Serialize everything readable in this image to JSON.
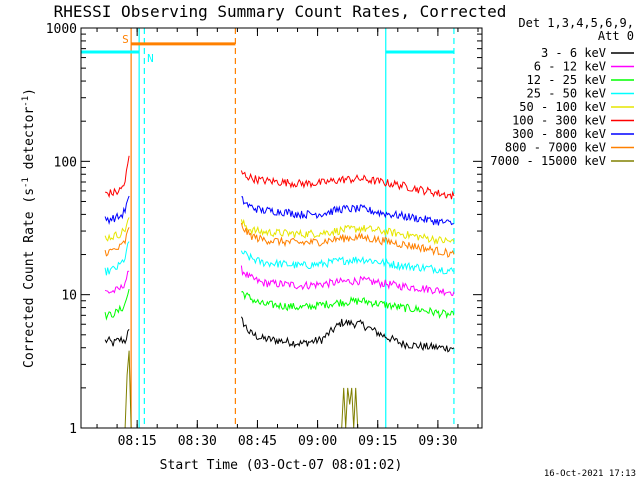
{
  "chart_data": {
    "type": "line",
    "title": "RHESSI Observing Summary Count Rates, Corrected",
    "xlabel": "Start Time (03-Oct-07 08:01:02)",
    "ylabel_main": "Corrected Count Rate (s",
    "ylabel_sup1": "-1",
    "ylabel_mid": " detector",
    "ylabel_sup2": "-1",
    "ylabel_end": ")",
    "y_scale": "log",
    "ylim": [
      1,
      1000
    ],
    "xlim_minutes": [
      0,
      100
    ],
    "x_ticks": [
      {
        "min": 14,
        "label": "08:15"
      },
      {
        "min": 29,
        "label": "08:30"
      },
      {
        "min": 44,
        "label": "08:45"
      },
      {
        "min": 59,
        "label": "09:00"
      },
      {
        "min": 74,
        "label": "09:15"
      },
      {
        "min": 89,
        "label": "09:30"
      }
    ],
    "y_ticks": [
      {
        "value": 1,
        "label": "1"
      },
      {
        "value": 10,
        "label": "10"
      },
      {
        "value": 100,
        "label": "100"
      },
      {
        "value": 1000,
        "label": "1000"
      }
    ],
    "legend": {
      "header1": "Det 1,3,4,5,6,9,",
      "header2": "Att 0",
      "placement": "right"
    },
    "series": [
      {
        "name": "3 - 6 keV",
        "color": "#000000",
        "segments": [
          {
            "x": [
              6,
              7,
              8,
              9,
              10,
              11,
              12
            ],
            "y": [
              4.5,
              4.5,
              4.3,
              4.5,
              4.6,
              4.5,
              5.5
            ]
          },
          {
            "x": [
              40,
              42,
              45,
              50,
              55,
              60,
              65,
              70,
              75,
              80,
              85,
              90,
              93
            ],
            "y": [
              6.5,
              5.2,
              4.7,
              4.5,
              4.3,
              4.6,
              6.2,
              6.0,
              5.0,
              4.3,
              4.1,
              4.0,
              4.0
            ]
          }
        ]
      },
      {
        "name": "6 - 12 keV",
        "color": "#ff00ff",
        "segments": [
          {
            "x": [
              6,
              7,
              8,
              9,
              10,
              11,
              12
            ],
            "y": [
              10.5,
              10.5,
              10.6,
              10.8,
              11.2,
              12.5,
              15
            ]
          },
          {
            "x": [
              40,
              42,
              45,
              50,
              55,
              60,
              65,
              70,
              75,
              80,
              85,
              90,
              93
            ],
            "y": [
              15.5,
              13.5,
              12.3,
              12.0,
              11.7,
              12.0,
              12.5,
              12.8,
              12.2,
              11.6,
              11.2,
              10.7,
              10.5
            ]
          }
        ]
      },
      {
        "name": "12 - 25 keV",
        "color": "#00ff00",
        "segments": [
          {
            "x": [
              6,
              7,
              8,
              9,
              10,
              11,
              12
            ],
            "y": [
              7.0,
              7.0,
              7.2,
              7.4,
              7.8,
              8.5,
              11
            ]
          },
          {
            "x": [
              40,
              42,
              45,
              50,
              55,
              60,
              65,
              70,
              75,
              80,
              85,
              90,
              93
            ],
            "y": [
              10.5,
              9.5,
              8.5,
              8.3,
              8.0,
              8.4,
              8.8,
              9.0,
              8.5,
              8.0,
              7.7,
              7.2,
              7.0
            ]
          }
        ]
      },
      {
        "name": "25 - 50 keV",
        "color": "#00ffff",
        "segments": [
          {
            "x": [
              6,
              7,
              8,
              9,
              10,
              11,
              12
            ],
            "y": [
              15,
              15,
              15.5,
              16,
              17,
              19,
              25
            ]
          },
          {
            "x": [
              40,
              42,
              45,
              50,
              55,
              60,
              65,
              70,
              75,
              80,
              85,
              90,
              93
            ],
            "y": [
              21,
              19,
              17.5,
              17,
              16.5,
              17,
              18,
              18.5,
              17.5,
              16.5,
              16,
              15.5,
              15
            ]
          }
        ]
      },
      {
        "name": "50 - 100 keV",
        "color": "#e6e600",
        "segments": [
          {
            "x": [
              6,
              7,
              8,
              9,
              10,
              11,
              12
            ],
            "y": [
              27,
              27,
              27.5,
              28,
              29,
              31,
              38
            ]
          },
          {
            "x": [
              40,
              42,
              45,
              50,
              55,
              60,
              65,
              70,
              75,
              80,
              85,
              90,
              93
            ],
            "y": [
              35,
              31,
              29.5,
              29,
              28.5,
              29,
              30.5,
              31.5,
              30,
              28.5,
              27,
              25.5,
              25
            ]
          }
        ]
      },
      {
        "name": "100 - 300 keV",
        "color": "#ff0000",
        "segments": [
          {
            "x": [
              6,
              7,
              8,
              9,
              10,
              11,
              12
            ],
            "y": [
              58,
              58,
              58,
              59,
              62,
              70,
              110
            ]
          },
          {
            "x": [
              40,
              42,
              45,
              50,
              55,
              60,
              65,
              70,
              75,
              80,
              85,
              90,
              93
            ],
            "y": [
              82,
              76,
              72,
              70,
              68,
              69,
              73,
              74,
              70,
              66,
              61,
              57,
              55
            ]
          }
        ]
      },
      {
        "name": "300 - 800 keV",
        "color": "#0000ff",
        "segments": [
          {
            "x": [
              6,
              7,
              8,
              9,
              10,
              11,
              12
            ],
            "y": [
              37,
              37,
              37.5,
              38,
              39,
              43,
              55
            ]
          },
          {
            "x": [
              40,
              42,
              45,
              50,
              55,
              60,
              65,
              70,
              75,
              80,
              85,
              90,
              93
            ],
            "y": [
              52,
              46,
              43,
              42,
              40,
              40.5,
              44,
              44,
              41,
              39,
              37,
              35,
              34
            ]
          }
        ]
      },
      {
        "name": "800 - 7000 keV",
        "color": "#ff8000",
        "segments": [
          {
            "x": [
              6,
              7,
              8,
              9,
              10,
              11,
              12
            ],
            "y": [
              21,
              21,
              21.5,
              22,
              23,
              25,
              32
            ]
          },
          {
            "x": [
              40,
              42,
              45,
              50,
              55,
              60,
              65,
              70,
              75,
              80,
              85,
              90,
              93
            ],
            "y": [
              33,
              28,
              26,
              25,
              24.5,
              25,
              26.5,
              27,
              25.5,
              24,
              22.5,
              21,
              20
            ]
          }
        ]
      },
      {
        "name": "7000 - 15000 keV",
        "color": "#808000",
        "segments": [
          {
            "x": [
              11,
              11.5,
              12,
              12.5
            ],
            "y": [
              1,
              2.5,
              3.8,
              1
            ]
          },
          {
            "x": [
              65,
              65.5,
              66,
              66.5,
              67,
              67.5,
              68,
              68.5,
              69
            ],
            "y": [
              1,
              2,
              1,
              2,
              1.5,
              2,
              1,
              2,
              1
            ]
          }
        ]
      }
    ],
    "flag_bars": [
      {
        "label": "",
        "color": "#00ffff",
        "y": 660,
        "from": 0,
        "to": 14.5
      },
      {
        "label": "",
        "color": "#00ffff",
        "y": 660,
        "from": 76,
        "to": 93
      },
      {
        "label": "S",
        "color": "#ff8000",
        "y": 760,
        "from": 12.5,
        "to": 38.5
      },
      {
        "label": "N",
        "color": "#00ffff",
        "y": 660,
        "from": 15.5,
        "to": 15.5
      }
    ],
    "vlines": [
      {
        "x": 12.5,
        "color": "#ff8000",
        "style": "solid"
      },
      {
        "x": 14.5,
        "color": "#00ffff",
        "style": "solid"
      },
      {
        "x": 15.8,
        "color": "#00ffff",
        "style": "dashed"
      },
      {
        "x": 38.5,
        "color": "#ff8000",
        "style": "dashed"
      },
      {
        "x": 76,
        "color": "#00ffff",
        "style": "solid"
      },
      {
        "x": 93,
        "color": "#00ffff",
        "style": "dashed"
      }
    ],
    "footer_timestamp": "16-Oct-2021 17:13"
  }
}
